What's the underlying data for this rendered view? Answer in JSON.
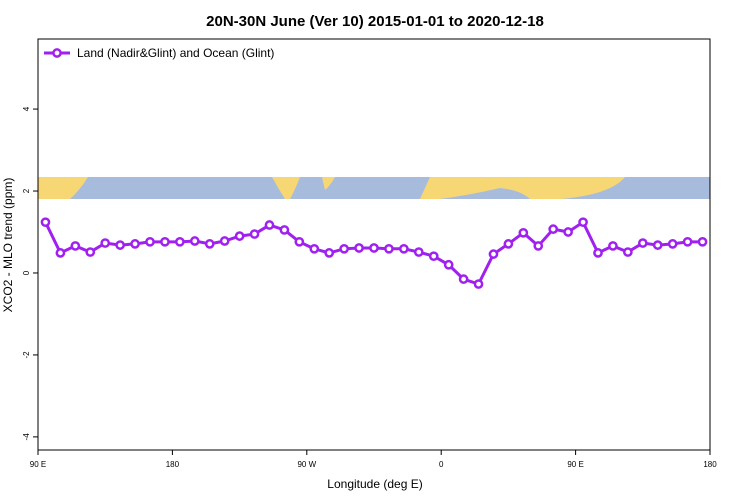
{
  "chart_data": {
    "type": "line",
    "title": "20N-30N June (Ver 10)   2015-01-01 to 2020-12-18",
    "x_label": "Longitude (deg E)",
    "y_label": "XCO2 - MLO trend (ppm)",
    "x": [
      95,
      105,
      115,
      125,
      135,
      145,
      155,
      165,
      175,
      185,
      195,
      205,
      215,
      225,
      235,
      245,
      255,
      265,
      275,
      285,
      295,
      305,
      315,
      325,
      335,
      345,
      355,
      365,
      375,
      385,
      395,
      405,
      415,
      425,
      435,
      445,
      455,
      465,
      475,
      485,
      495,
      505,
      515,
      525,
      535
    ],
    "series": [
      {
        "name": "Land (Nadir&Glint) and Ocean (Glint)",
        "color": "#a020f0",
        "values": [
          1.24,
          0.49,
          0.66,
          0.51,
          0.73,
          0.68,
          0.71,
          0.76,
          0.76,
          0.76,
          0.78,
          0.71,
          0.78,
          0.9,
          0.95,
          1.17,
          1.05,
          0.76,
          0.59,
          0.49,
          0.59,
          0.61,
          0.61,
          0.59,
          0.59,
          0.51,
          0.41,
          0.2,
          -0.15,
          -0.27,
          0.46,
          0.71,
          0.98,
          0.66,
          1.07,
          1.0,
          1.24,
          0.49,
          0.66,
          0.51,
          0.73,
          0.68,
          0.71,
          0.76,
          0.76
        ]
      }
    ],
    "xlim": [
      90,
      540
    ],
    "xticks": [
      {
        "value": 90,
        "label": "90 E"
      },
      180,
      {
        "value": 270,
        "label": "90 W"
      },
      {
        "value": 360,
        "label": "0"
      },
      {
        "value": 450,
        "label": "90 E"
      },
      {
        "value": 540,
        "label": "180"
      }
    ],
    "ylim": [
      -4.32,
      5.71
    ],
    "yticks": [
      -4,
      -2,
      0,
      2,
      4
    ],
    "legend": "top-left"
  }
}
